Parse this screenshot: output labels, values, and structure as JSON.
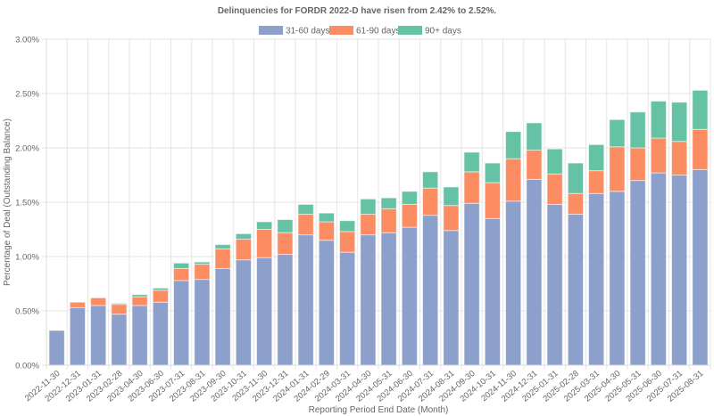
{
  "chart_data": {
    "type": "bar",
    "stacked": true,
    "title": "Delinquencies for FORDR 2022-D have risen from 2.42% to 2.52%.",
    "xlabel": "Reporting Period End Date (Month)",
    "ylabel": "Percentage of Deal (Outstanding Balance)",
    "ylim": [
      0,
      3.0
    ],
    "yticks": [
      "0.00%",
      "0.50%",
      "1.00%",
      "1.50%",
      "2.00%",
      "2.50%",
      "3.00%"
    ],
    "ytick_values": [
      0,
      0.5,
      1.0,
      1.5,
      2.0,
      2.5,
      3.0
    ],
    "grid": true,
    "legend_position": "top-center",
    "categories": [
      "2022-11-30",
      "2022-12-31",
      "2023-01-31",
      "2023-02-28",
      "2023-04-30",
      "2023-06-30",
      "2023-07-31",
      "2023-08-31",
      "2023-09-30",
      "2023-10-31",
      "2023-11-30",
      "2023-12-31",
      "2024-01-31",
      "2024-02-29",
      "2024-03-31",
      "2024-04-30",
      "2024-05-31",
      "2024-06-30",
      "2024-07-31",
      "2024-08-31",
      "2024-09-30",
      "2024-10-31",
      "2024-11-30",
      "2024-12-31",
      "2025-01-31",
      "2025-02-28",
      "2025-03-31",
      "2025-04-30",
      "2025-05-31",
      "2025-06-30",
      "2025-07-31",
      "2025-08-31"
    ],
    "series": [
      {
        "name": "31-60 days",
        "color": "#8da0cb",
        "values": [
          0.32,
          0.53,
          0.55,
          0.47,
          0.55,
          0.58,
          0.78,
          0.79,
          0.89,
          0.97,
          0.99,
          1.02,
          1.2,
          1.15,
          1.04,
          1.2,
          1.22,
          1.27,
          1.38,
          1.24,
          1.49,
          1.35,
          1.51,
          1.71,
          1.48,
          1.39,
          1.58,
          1.6,
          1.7,
          1.77,
          1.75,
          1.8
        ]
      },
      {
        "name": "61-90 days",
        "color": "#fc8d62",
        "values": [
          0.0,
          0.05,
          0.07,
          0.09,
          0.08,
          0.11,
          0.11,
          0.14,
          0.18,
          0.19,
          0.26,
          0.2,
          0.19,
          0.17,
          0.19,
          0.19,
          0.22,
          0.21,
          0.25,
          0.23,
          0.29,
          0.33,
          0.39,
          0.27,
          0.28,
          0.19,
          0.21,
          0.41,
          0.3,
          0.32,
          0.31,
          0.37
        ]
      },
      {
        "name": "90+ days",
        "color": "#66c2a5",
        "values": [
          0.0,
          0.0,
          0.0,
          0.01,
          0.02,
          0.02,
          0.05,
          0.02,
          0.04,
          0.05,
          0.07,
          0.12,
          0.09,
          0.08,
          0.1,
          0.14,
          0.1,
          0.12,
          0.15,
          0.17,
          0.18,
          0.18,
          0.25,
          0.25,
          0.23,
          0.28,
          0.24,
          0.25,
          0.33,
          0.34,
          0.36,
          0.36
        ]
      }
    ]
  }
}
